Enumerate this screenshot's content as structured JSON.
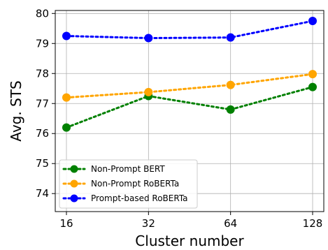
{
  "chart_data": {
    "type": "line",
    "title": "",
    "xlabel": "Cluster number",
    "ylabel": "Avg. STS",
    "x_scale": "log2",
    "x": [
      16,
      32,
      64,
      128
    ],
    "x_tick_labels": [
      "16",
      "32",
      "64",
      "128"
    ],
    "ylim": [
      73.4,
      80.1
    ],
    "y_ticks": [
      74,
      75,
      76,
      77,
      78,
      79,
      80
    ],
    "grid": true,
    "legend_position": "lower-left",
    "series": [
      {
        "name": "Non-Prompt BERT",
        "color": "#008000",
        "values": [
          76.2,
          77.25,
          76.8,
          77.55
        ]
      },
      {
        "name": "Non-Prompt RoBERTa",
        "color": "#FFA500",
        "values": [
          77.2,
          77.38,
          77.62,
          77.98
        ]
      },
      {
        "name": "Prompt-based RoBERTa",
        "color": "#0000FF",
        "values": [
          79.25,
          79.18,
          79.2,
          79.75
        ]
      }
    ]
  }
}
